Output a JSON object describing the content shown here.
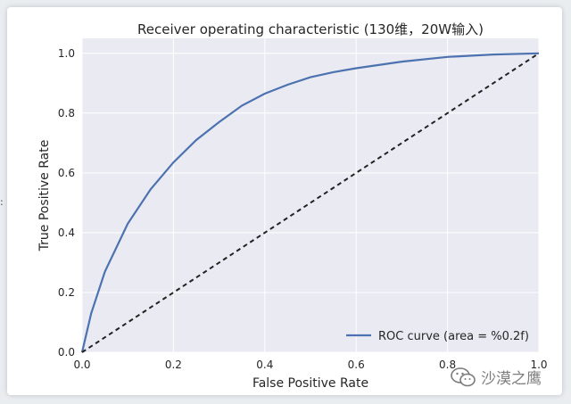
{
  "page": {
    "edge_glyph": ":"
  },
  "chart_data": {
    "type": "line",
    "title": "Receiver operating characteristic (130维，20W输入)",
    "xlabel": "False Positive Rate",
    "ylabel": "True Positive Rate",
    "xlim": [
      0.0,
      1.0
    ],
    "ylim": [
      0.0,
      1.05
    ],
    "grid": true,
    "xticks": [
      0.0,
      0.2,
      0.4,
      0.6,
      0.8,
      1.0
    ],
    "yticks": [
      0.0,
      0.2,
      0.4,
      0.6,
      0.8,
      1.0
    ],
    "xtick_labels": [
      "0.0",
      "0.2",
      "0.4",
      "0.6",
      "0.8",
      "1.0"
    ],
    "ytick_labels": [
      "0.0",
      "0.2",
      "0.4",
      "0.6",
      "0.8",
      "1.0"
    ],
    "legend_position": "bottom-right",
    "series": [
      {
        "name": "ROC curve (area = %0.2f)",
        "style": "solid",
        "color": "#4c72b0",
        "x": [
          0.0,
          0.02,
          0.05,
          0.1,
          0.15,
          0.2,
          0.25,
          0.3,
          0.35,
          0.4,
          0.45,
          0.5,
          0.55,
          0.6,
          0.7,
          0.8,
          0.9,
          1.0
        ],
        "y": [
          0.0,
          0.13,
          0.27,
          0.43,
          0.545,
          0.635,
          0.71,
          0.77,
          0.825,
          0.865,
          0.895,
          0.92,
          0.937,
          0.95,
          0.972,
          0.988,
          0.996,
          1.0
        ]
      },
      {
        "name": "",
        "style": "dashed",
        "color": "#222222",
        "x": [
          0.0,
          1.0
        ],
        "y": [
          0.0,
          1.0
        ]
      }
    ]
  },
  "watermark": {
    "text": "沙漠之鹰",
    "icon": "wechat-icon"
  },
  "colors": {
    "plot_bg": "#eaeaf2",
    "grid": "#ffffff",
    "line": "#4c72b0",
    "diagonal": "#222222"
  }
}
